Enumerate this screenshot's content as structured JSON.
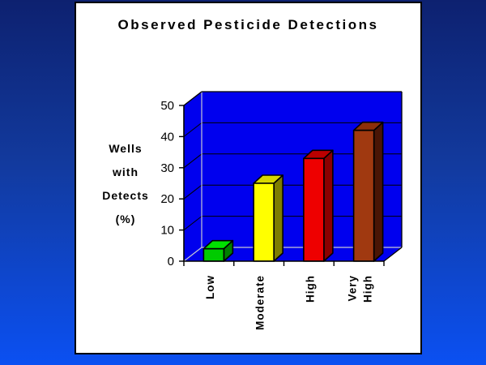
{
  "window": {
    "bg_gradient_top": "#0d2170",
    "bg_gradient_bottom": "#0b50f2",
    "card_bg": "#ffffff",
    "card_border": "#000000"
  },
  "chart_data": {
    "type": "bar",
    "style": "3d-column",
    "title": "Observed Pesticide Detections",
    "ylabel": "Wells with Detects (%)",
    "ylabel_lines": [
      "Wells",
      "with",
      "Detects",
      "(%)"
    ],
    "xlabel": "",
    "categories": [
      "Low",
      "Moderate",
      "High",
      "Very High"
    ],
    "values": [
      4,
      25,
      33,
      42
    ],
    "ylim": [
      0,
      50
    ],
    "yticks": [
      0,
      10,
      20,
      30,
      40,
      50
    ],
    "grid": true,
    "legend": "none",
    "wall_color": "#0000ee",
    "grid_color": "#000000",
    "edge_light": "#c8c8d4",
    "edge_dark": "#000000",
    "bar_colors": [
      {
        "name": "green",
        "front": "#00cb00",
        "top": "#00e000",
        "side": "#008000"
      },
      {
        "name": "yellow",
        "front": "#ffff00",
        "top": "#d6d600",
        "side": "#7e7e00"
      },
      {
        "name": "red",
        "front": "#ee0000",
        "top": "#bb0000",
        "side": "#8b0000"
      },
      {
        "name": "brown",
        "front": "#a03910",
        "top": "#8c2f0a",
        "side": "#4a1505"
      }
    ]
  }
}
